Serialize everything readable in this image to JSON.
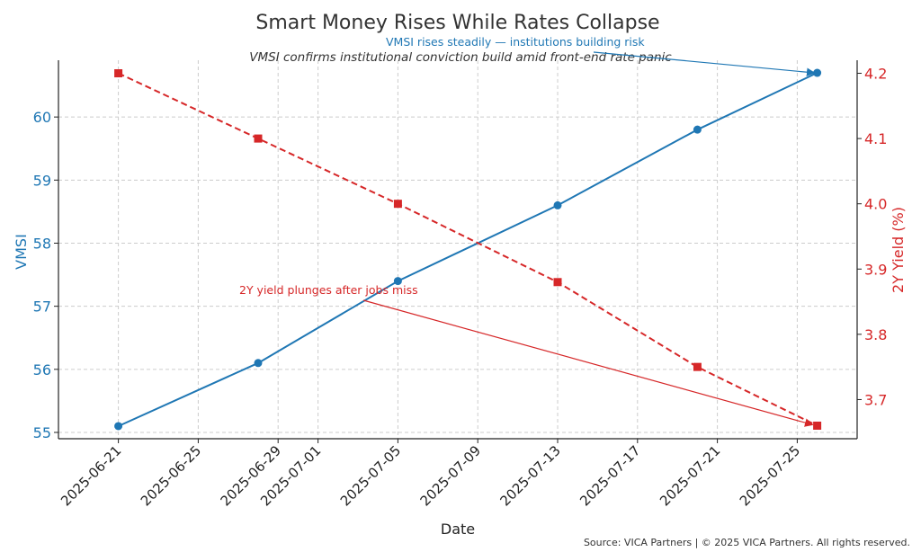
{
  "chart_data": {
    "type": "line",
    "title": "Smart Money Rises While Rates Collapse",
    "subtitle": "VMSI confirms institutional conviction build amid front-end rate panic",
    "xlabel": "Date",
    "ylabel_left": "VMSI",
    "ylabel_right": "2Y Yield (%)",
    "x": [
      "2025-06-21",
      "2025-06-28",
      "2025-07-05",
      "2025-07-13",
      "2025-07-20",
      "2025-07-26"
    ],
    "x_ticks": [
      "2025-06-21",
      "2025-06-25",
      "2025-06-29",
      "2025-07-01",
      "2025-07-05",
      "2025-07-09",
      "2025-07-13",
      "2025-07-17",
      "2025-07-21",
      "2025-07-25"
    ],
    "series": [
      {
        "name": "VMSI",
        "axis": "left",
        "color": "#1f77b4",
        "line_style": "solid",
        "marker": "circle",
        "values": [
          55.1,
          56.1,
          57.4,
          58.6,
          59.8,
          60.7
        ]
      },
      {
        "name": "2Y Yield (%)",
        "axis": "right",
        "color": "#d62728",
        "line_style": "dashed",
        "marker": "square",
        "values": [
          4.2,
          4.1,
          4.0,
          3.88,
          3.75,
          3.66
        ]
      }
    ],
    "ylim_left": [
      54.9,
      60.9
    ],
    "yticks_left": [
      55,
      56,
      57,
      58,
      59,
      60
    ],
    "ylim_right": [
      3.64,
      4.22
    ],
    "yticks_right": [
      3.7,
      3.8,
      3.9,
      4.0,
      4.1,
      4.2
    ],
    "yticklabels_right": [
      "3.7",
      "3.8",
      "3.9",
      "4.0",
      "4.1",
      "4.2"
    ],
    "grid": true,
    "annotations": [
      {
        "text": "VMSI rises steadily — institutions building risk",
        "series": 0,
        "point_index": 5,
        "color": "#1f77b4"
      },
      {
        "text": "2Y yield plunges after jobs miss",
        "series": 1,
        "point_index": 5,
        "color": "#d62728"
      }
    ],
    "footer": "Source: VICA Partners | © 2025 VICA Partners. All rights reserved."
  }
}
